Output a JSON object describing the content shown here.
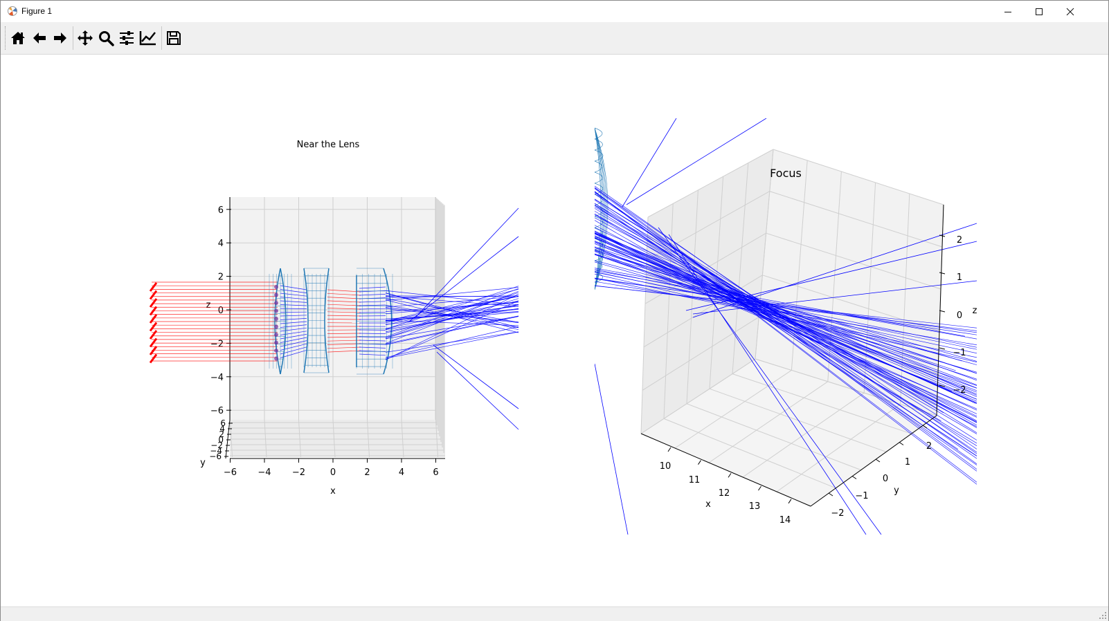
{
  "window": {
    "title": "Figure 1"
  },
  "toolbar": {
    "buttons": [
      {
        "name": "home",
        "icon": "home-icon"
      },
      {
        "name": "back",
        "icon": "arrow-left-icon"
      },
      {
        "name": "forward",
        "icon": "arrow-right-icon"
      },
      {
        "name": "pan",
        "icon": "move-icon"
      },
      {
        "name": "zoom",
        "icon": "zoom-icon"
      },
      {
        "name": "configure-subplots",
        "icon": "sliders-icon"
      },
      {
        "name": "edit-axes",
        "icon": "chart-line-icon"
      },
      {
        "name": "save",
        "icon": "save-icon"
      }
    ]
  },
  "colors": {
    "incoming_rays": "#ff0000",
    "outgoing_rays": "#0000ff",
    "lens_wireframe": "#1f77b4",
    "pane_face": "#f2f2f2",
    "grid": "#cfcfcf"
  },
  "chart_data": [
    {
      "type": "3d-line",
      "title": "Near the Lens",
      "xlabel": "x",
      "ylabel": "y",
      "zlabel": "z",
      "x_ticks": [
        "−6",
        "−4",
        "−2",
        "0",
        "2",
        "4",
        "6"
      ],
      "y_ticks": [
        "−6",
        "−4",
        "−2",
        "0",
        "2",
        "4",
        "6"
      ],
      "z_ticks": [
        "−6",
        "−4",
        "−2",
        "0",
        "2",
        "4",
        "6"
      ],
      "xlim": [
        -6,
        6
      ],
      "ylim": [
        -6,
        6
      ],
      "zlim": [
        -6,
        6
      ],
      "view": "side view along y",
      "series": [
        {
          "color": "#ff0000",
          "x_start": -10.5,
          "z_range": [
            -3,
            1.5
          ],
          "count": 10
        },
        {
          "color": "#0000ff",
          "converges_near_x": 10.5
        }
      ],
      "lenses_x_centers": [
        -3,
        -1,
        3
      ]
    },
    {
      "type": "3d-line",
      "title": "Focus",
      "xlabel": "x",
      "ylabel": "y",
      "zlabel": "z",
      "x_ticks": [
        "10",
        "11",
        "12",
        "13",
        "14"
      ],
      "y_ticks": [
        "−2",
        "−1",
        "0",
        "1",
        "2"
      ],
      "z_ticks": [
        "2",
        "1",
        "0",
        "−1",
        "−2"
      ],
      "xlim": [
        9.5,
        14.5
      ],
      "ylim": [
        -2.5,
        2.5
      ],
      "zlim": [
        -2.5,
        2.5
      ],
      "view": "perspective",
      "series": [
        {
          "color": "#0000ff",
          "converges_near_x": 11.8
        }
      ]
    }
  ]
}
